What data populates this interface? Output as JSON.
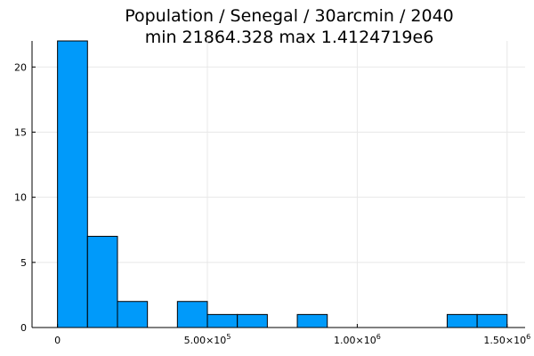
{
  "chart_data": {
    "type": "bar",
    "title_line1": "Population / Senegal / 30arcmin / 2040",
    "title_line2": "min 21864.328  max 1.4124719e6",
    "bar_color": "#009AFA",
    "bin_width": 100000,
    "bins": [
      {
        "start": 0,
        "end": 100000,
        "count": 22
      },
      {
        "start": 100000,
        "end": 200000,
        "count": 7
      },
      {
        "start": 200000,
        "end": 300000,
        "count": 2
      },
      {
        "start": 400000,
        "end": 500000,
        "count": 2
      },
      {
        "start": 500000,
        "end": 600000,
        "count": 1
      },
      {
        "start": 600000,
        "end": 700000,
        "count": 1
      },
      {
        "start": 800000,
        "end": 900000,
        "count": 1
      },
      {
        "start": 1300000,
        "end": 1400000,
        "count": 1
      },
      {
        "start": 1400000,
        "end": 1500000,
        "count": 1
      }
    ],
    "xlim": [
      -85000,
      1560000
    ],
    "ylim": [
      0,
      22
    ],
    "x_ticks": [
      {
        "value": 0,
        "label": "0",
        "exp": ""
      },
      {
        "value": 500000,
        "label": "5.00×10",
        "exp": "5"
      },
      {
        "value": 1000000,
        "label": "1.00×10",
        "exp": "6"
      },
      {
        "value": 1500000,
        "label": "1.50×10",
        "exp": "6"
      }
    ],
    "y_ticks": [
      {
        "value": 0,
        "label": "0"
      },
      {
        "value": 5,
        "label": "5"
      },
      {
        "value": 10,
        "label": "10"
      },
      {
        "value": 15,
        "label": "15"
      },
      {
        "value": 20,
        "label": "20"
      }
    ],
    "grid": true,
    "legend": "none"
  }
}
